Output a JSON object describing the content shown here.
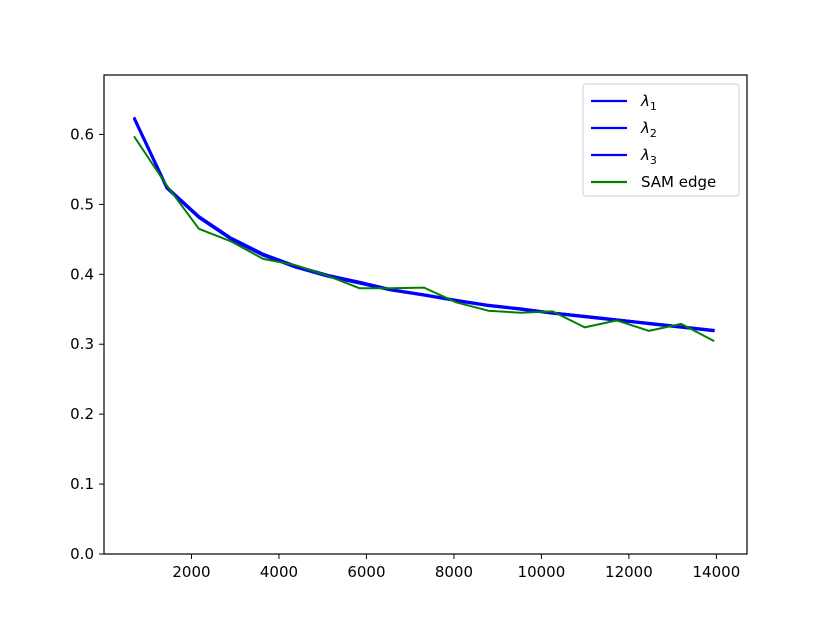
{
  "chart_data": {
    "type": "line",
    "title": "",
    "xlabel": "",
    "ylabel": "",
    "xlim": [
      0,
      14700
    ],
    "ylim": [
      0.0,
      0.685
    ],
    "x_ticks": [
      2000,
      4000,
      6000,
      8000,
      10000,
      12000,
      14000
    ],
    "x_tick_labels": [
      "2000",
      "4000",
      "6000",
      "8000",
      "10000",
      "12000",
      "14000"
    ],
    "y_ticks": [
      0.0,
      0.1,
      0.2,
      0.3,
      0.4,
      0.5,
      0.6
    ],
    "y_tick_labels": [
      "0.0",
      "0.1",
      "0.2",
      "0.3",
      "0.4",
      "0.5",
      "0.6"
    ],
    "grid": false,
    "legend_position": "top-right",
    "x": [
      700,
      1435,
      2170,
      2905,
      3640,
      4375,
      5110,
      5845,
      6580,
      7315,
      8050,
      8785,
      9520,
      10255,
      10990,
      11725,
      12460,
      13195,
      13930
    ],
    "series": [
      {
        "name": "λ",
        "subscript": "1",
        "color": "#0000ff",
        "values": [
          0.623,
          0.525,
          0.483,
          0.452,
          0.429,
          0.412,
          0.399,
          0.389,
          0.378,
          0.371,
          0.363,
          0.356,
          0.351,
          0.345,
          0.34,
          0.335,
          0.33,
          0.325,
          0.32
        ]
      },
      {
        "name": "λ",
        "subscript": "2",
        "color": "#0000ff",
        "values": [
          0.621,
          0.523,
          0.481,
          0.45,
          0.427,
          0.41,
          0.397,
          0.387,
          0.377,
          0.37,
          0.362,
          0.355,
          0.35,
          0.344,
          0.339,
          0.334,
          0.329,
          0.324,
          0.319
        ]
      },
      {
        "name": "λ",
        "subscript": "3",
        "color": "#0000ff",
        "values": [
          0.622,
          0.524,
          0.482,
          0.451,
          0.428,
          0.411,
          0.398,
          0.388,
          0.378,
          0.371,
          0.363,
          0.356,
          0.35,
          0.345,
          0.34,
          0.335,
          0.33,
          0.325,
          0.32
        ]
      },
      {
        "name": "SAM edge",
        "subscript": "",
        "color": "#008000",
        "values": [
          0.596,
          0.527,
          0.465,
          0.447,
          0.422,
          0.413,
          0.398,
          0.38,
          0.38,
          0.381,
          0.36,
          0.348,
          0.345,
          0.347,
          0.324,
          0.334,
          0.319,
          0.329,
          0.305
        ]
      }
    ]
  }
}
